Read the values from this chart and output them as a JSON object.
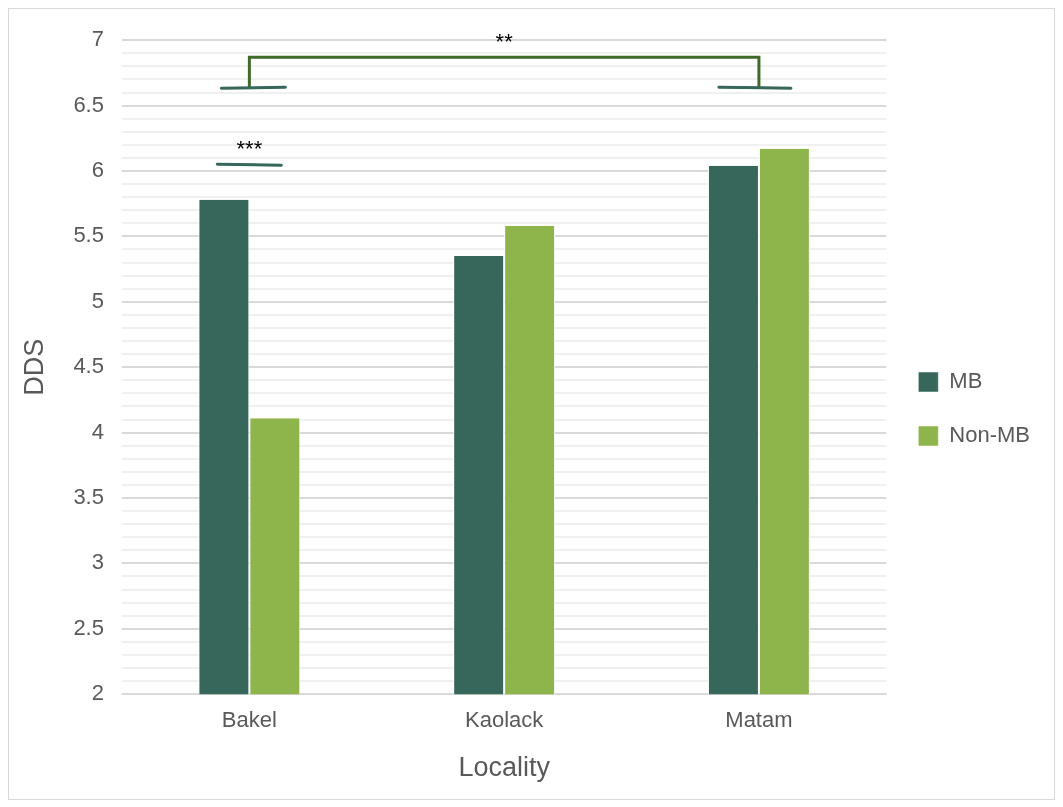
{
  "chart_data": {
    "type": "bar",
    "xlabel": "Locality",
    "ylabel": "DDS",
    "categories": [
      "Bakel",
      "Kaolack",
      "Matam"
    ],
    "series": [
      {
        "name": "MB",
        "color": "#36675a",
        "values": [
          5.78,
          5.35,
          6.04
        ]
      },
      {
        "name": "Non-MB",
        "color": "#8db54b",
        "values": [
          4.11,
          5.58,
          6.17
        ]
      }
    ],
    "ylim": [
      2,
      7
    ],
    "yticks": [
      2,
      {
        "value": 2.1,
        "label": null
      },
      {
        "value": 2.2,
        "label": null
      },
      {
        "value": 2.3,
        "label": null
      },
      {
        "value": 2.4,
        "label": null
      },
      2.5,
      {
        "value": 2.6,
        "label": null
      },
      {
        "value": 2.7,
        "label": null
      },
      {
        "value": 2.8,
        "label": null
      },
      {
        "value": 2.9,
        "label": null
      },
      3,
      {
        "value": 3.1,
        "label": null
      },
      {
        "value": 3.2,
        "label": null
      },
      {
        "value": 3.3,
        "label": null
      },
      {
        "value": 3.4,
        "label": null
      },
      3.5,
      {
        "value": 3.6,
        "label": null
      },
      {
        "value": 3.7,
        "label": null
      },
      {
        "value": 3.8,
        "label": null
      },
      {
        "value": 3.9,
        "label": null
      },
      4,
      {
        "value": 4.1,
        "label": null
      },
      {
        "value": 4.2,
        "label": null
      },
      {
        "value": 4.3,
        "label": null
      },
      {
        "value": 4.4,
        "label": null
      },
      4.5,
      {
        "value": 4.6,
        "label": null
      },
      {
        "value": 4.7,
        "label": null
      },
      {
        "value": 4.8,
        "label": null
      },
      {
        "value": 4.9,
        "label": null
      },
      5,
      {
        "value": 5.1,
        "label": null
      },
      {
        "value": 5.2,
        "label": null
      },
      {
        "value": 5.3,
        "label": null
      },
      {
        "value": 5.4,
        "label": null
      },
      5.5,
      {
        "value": 5.6,
        "label": null
      },
      {
        "value": 5.7,
        "label": null
      },
      {
        "value": 5.8,
        "label": null
      },
      {
        "value": 5.9,
        "label": null
      },
      6,
      {
        "value": 6.1,
        "label": null
      },
      {
        "value": 6.2,
        "label": null
      },
      {
        "value": 6.3,
        "label": null
      },
      {
        "value": 6.4,
        "label": null
      },
      6.5,
      {
        "value": 6.6,
        "label": null
      },
      {
        "value": 6.7,
        "label": null
      },
      {
        "value": 6.8,
        "label": null
      },
      {
        "value": 6.9,
        "label": null
      },
      7
    ],
    "grid": "y",
    "legend": "right",
    "annotations": [
      "***",
      "**"
    ]
  }
}
